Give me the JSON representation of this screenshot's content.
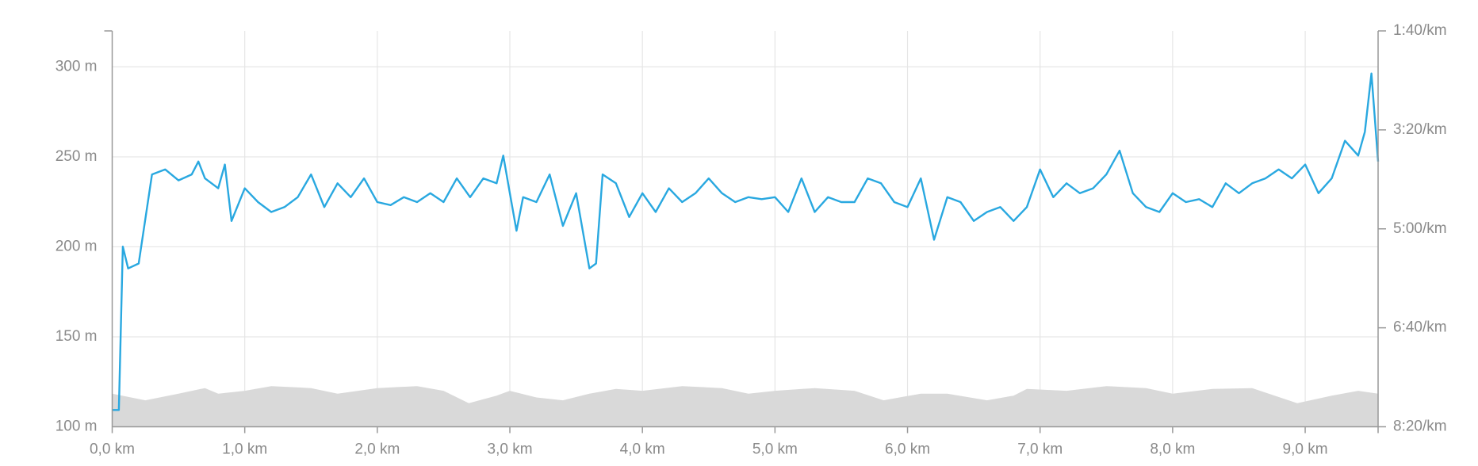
{
  "chart_data": {
    "type": "line",
    "xlim": [
      0,
      9.55
    ],
    "xticks": [
      {
        "value": 0,
        "label": "0,0 km"
      },
      {
        "value": 1,
        "label": "1,0 km"
      },
      {
        "value": 2,
        "label": "2,0 km"
      },
      {
        "value": 3,
        "label": "3,0 km"
      },
      {
        "value": 4,
        "label": "4,0 km"
      },
      {
        "value": 5,
        "label": "5,0 km"
      },
      {
        "value": 6,
        "label": "6,0 km"
      },
      {
        "value": 7,
        "label": "7,0 km"
      },
      {
        "value": 8,
        "label": "8,0 km"
      },
      {
        "value": 9,
        "label": "9,0 km"
      }
    ],
    "ylim": [
      100,
      320
    ],
    "yticks": [
      {
        "value": 100,
        "label": "100 m"
      },
      {
        "value": 150,
        "label": "150 m"
      },
      {
        "value": 200,
        "label": "200 m"
      },
      {
        "value": 250,
        "label": "250 m"
      },
      {
        "value": 300,
        "label": "300 m"
      }
    ],
    "y2lim": [
      500,
      100
    ],
    "y2ticks": [
      {
        "value": 100,
        "label": "1:40/km"
      },
      {
        "value": 200,
        "label": "3:20/km"
      },
      {
        "value": 300,
        "label": "5:00/km"
      },
      {
        "value": 400,
        "label": "6:40/km"
      },
      {
        "value": 500,
        "label": "8:20/km"
      }
    ],
    "grid": true,
    "series": [
      {
        "type": "area",
        "color": "#d9d9d9",
        "x": [
          0,
          0.25,
          0.5,
          0.7,
          0.8,
          1.0,
          1.2,
          1.5,
          1.7,
          2.0,
          2.3,
          2.5,
          2.69,
          2.9,
          3.0,
          3.2,
          3.4,
          3.6,
          3.8,
          4.0,
          4.3,
          4.6,
          4.8,
          5.0,
          5.3,
          5.6,
          5.82,
          6.1,
          6.3,
          6.6,
          6.8,
          6.9,
          7.2,
          7.5,
          7.8,
          8.0,
          8.3,
          8.6,
          8.94,
          9.2,
          9.4,
          9.55
        ],
        "values": [
          118.4,
          114.7,
          118.4,
          121.5,
          118.4,
          120,
          122.6,
          121.5,
          118.4,
          121.5,
          122.6,
          120,
          113.1,
          117.3,
          120,
          116.3,
          114.7,
          118.4,
          121,
          120,
          122.6,
          121.5,
          118.4,
          120,
          121.5,
          120,
          114.7,
          118.4,
          118.4,
          114.7,
          117.3,
          121,
          120,
          122.6,
          121.5,
          118.4,
          121,
          121.5,
          113.1,
          117.3,
          120,
          118.4
        ]
      },
      {
        "type": "line",
        "color": "#29a8e0",
        "axis": "y2",
        "x": [
          0,
          0.05,
          0.08,
          0.12,
          0.2,
          0.3,
          0.4,
          0.5,
          0.6,
          0.65,
          0.7,
          0.8,
          0.85,
          0.9,
          1.0,
          1.1,
          1.2,
          1.3,
          1.4,
          1.5,
          1.6,
          1.7,
          1.8,
          1.9,
          2.0,
          2.1,
          2.2,
          2.3,
          2.4,
          2.5,
          2.6,
          2.7,
          2.8,
          2.9,
          2.95,
          3.0,
          3.05,
          3.1,
          3.2,
          3.3,
          3.4,
          3.5,
          3.6,
          3.65,
          3.7,
          3.8,
          3.9,
          4.0,
          4.1,
          4.2,
          4.3,
          4.4,
          4.5,
          4.6,
          4.7,
          4.8,
          4.9,
          5.0,
          5.1,
          5.2,
          5.3,
          5.4,
          5.5,
          5.6,
          5.7,
          5.8,
          5.9,
          6.0,
          6.1,
          6.2,
          6.3,
          6.4,
          6.5,
          6.6,
          6.7,
          6.8,
          6.9,
          7.0,
          7.1,
          7.2,
          7.3,
          7.4,
          7.5,
          7.6,
          7.7,
          7.8,
          7.9,
          8.0,
          8.1,
          8.2,
          8.3,
          8.4,
          8.5,
          8.6,
          8.7,
          8.8,
          8.9,
          9.0,
          9.1,
          9.2,
          9.3,
          9.4,
          9.45,
          9.5,
          9.55
        ],
        "values": [
          483,
          483,
          318,
          340,
          335,
          245,
          240,
          251,
          245,
          232,
          249,
          259,
          235,
          292,
          259,
          273,
          283,
          278,
          268,
          245,
          278,
          254,
          268,
          249,
          273,
          276,
          268,
          273,
          264,
          273,
          249,
          268,
          249,
          254,
          226,
          264,
          302,
          268,
          273,
          245,
          297,
          264,
          340,
          335,
          245,
          254,
          288,
          264,
          283,
          259,
          273,
          264,
          249,
          264,
          273,
          268,
          270,
          268,
          283,
          249,
          283,
          268,
          273,
          273,
          249,
          254,
          273,
          278,
          249,
          311,
          268,
          273,
          292,
          283,
          278,
          292,
          278,
          240,
          268,
          254,
          264,
          259,
          245,
          221,
          264,
          278,
          283,
          264,
          273,
          270,
          278,
          254,
          264,
          254,
          249,
          240,
          249,
          235,
          264,
          249,
          211,
          226,
          202,
          143,
          232
        ]
      }
    ]
  }
}
